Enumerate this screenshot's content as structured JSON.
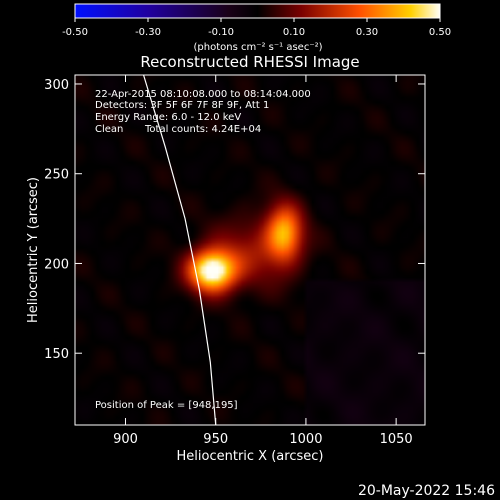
{
  "chart_data": {
    "type": "heatmap",
    "title": "Reconstructed RHESSI Image",
    "xlabel": "Heliocentric X (arcsec)",
    "ylabel": "Heliocentric Y (arcsec)",
    "xlim": [
      872,
      1066
    ],
    "ylim": [
      110,
      305
    ],
    "xticks": [
      900,
      950,
      1000,
      1050
    ],
    "yticks": [
      150,
      200,
      250,
      300
    ],
    "colorbar": {
      "range": [
        -0.5,
        0.5
      ],
      "ticks": [
        "-0.50",
        "-0.30",
        "-0.10",
        "0.10",
        "0.30",
        "0.50"
      ],
      "units_label": "(photons cm⁻² s⁻¹ asec⁻²)"
    },
    "annotations": {
      "time_range": "22-Apr-2015 08:10:08.000 to 08:14:04.000",
      "detectors": "Detectors: 3F 5F 6F 7F 8F 9F, Att 1",
      "energy": "Energy Range: 6.0 - 12.0 keV",
      "clean": "Clean",
      "total_counts": "Total counts: 4.24E+04",
      "peak": "Position of Peak = [948,195]"
    },
    "sources": [
      {
        "x": 948,
        "y": 196,
        "sigma_x": 9,
        "sigma_y": 8,
        "amp": 0.55
      },
      {
        "x": 988,
        "y": 217,
        "sigma_x": 7,
        "sigma_y": 11,
        "amp": 0.36
      },
      {
        "x": 970,
        "y": 206,
        "sigma_x": 16,
        "sigma_y": 14,
        "amp": 0.14
      }
    ],
    "limb": [
      [
        910,
        305
      ],
      [
        922,
        265
      ],
      [
        933,
        225
      ],
      [
        941,
        185
      ],
      [
        947,
        145
      ],
      [
        950,
        110
      ]
    ]
  },
  "footer_timestamp": "20-May-2022 15:46"
}
